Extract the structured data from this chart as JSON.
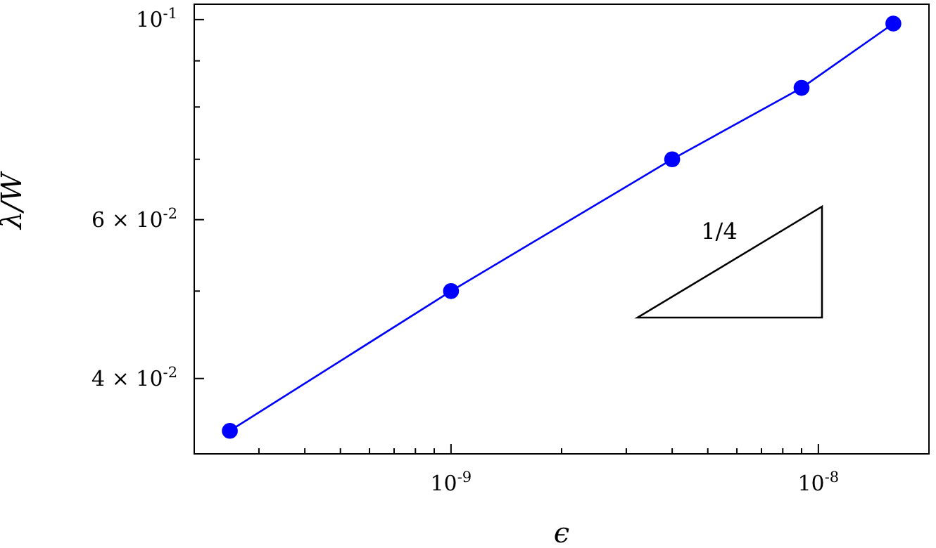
{
  "chart_data": {
    "type": "line",
    "xlabel": "ϵ",
    "ylabel": "λ/W",
    "x": [
      2.5e-10,
      1e-09,
      4e-09,
      9e-09,
      1.6e-08
    ],
    "series": [
      {
        "color": "#0000ff",
        "values": [
          0.035,
          0.05,
          0.07,
          0.084,
          0.099
        ]
      }
    ],
    "log": "xy",
    "marker": "circle",
    "line_style": "solid",
    "xlim": [
      2e-10,
      2e-08
    ],
    "ylim": [
      0.033,
      0.104
    ],
    "xticks": [
      {
        "value": 3e-10,
        "label": null
      },
      {
        "value": 4e-10,
        "label": null
      },
      {
        "value": 5e-10,
        "label": null
      },
      {
        "value": 6e-10,
        "label": null
      },
      {
        "value": 7e-10,
        "label": null
      },
      {
        "value": 8e-10,
        "label": null
      },
      {
        "value": 9e-10,
        "label": null
      },
      {
        "value": 1e-09,
        "label": "10$^{-9}$"
      },
      {
        "value": 2e-09,
        "label": null
      },
      {
        "value": 3e-09,
        "label": null
      },
      {
        "value": 4e-09,
        "label": null
      },
      {
        "value": 5e-09,
        "label": null
      },
      {
        "value": 6e-09,
        "label": null
      },
      {
        "value": 7e-09,
        "label": null
      },
      {
        "value": 8e-09,
        "label": null
      },
      {
        "value": 9e-09,
        "label": null
      },
      {
        "value": 1e-08,
        "label": "10$^{-8}$"
      }
    ],
    "yticks": [
      {
        "value": 0.04,
        "label": "4 × 10$^{-2}$"
      },
      {
        "value": 0.05,
        "label": null
      },
      {
        "value": 0.06,
        "label": "6 × 10$^{-2}$"
      },
      {
        "value": 0.07,
        "label": null
      },
      {
        "value": 0.08,
        "label": null
      },
      {
        "value": 0.09,
        "label": null
      },
      {
        "value": 0.1,
        "label": "10$^{-1}$"
      }
    ],
    "annotations": [
      "1/4"
    ]
  }
}
